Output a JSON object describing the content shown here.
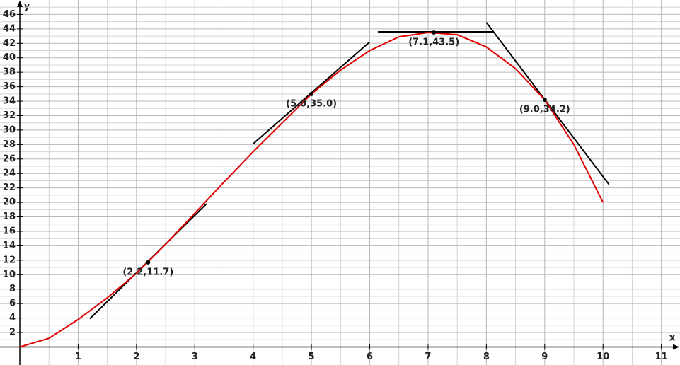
{
  "chart_data": {
    "type": "line",
    "x_label": "x",
    "y_label": "y",
    "xlim": [
      -0.34,
      11.32
    ],
    "ylim": [
      -2.5,
      48
    ],
    "xticks": [
      1,
      2,
      3,
      4,
      5,
      6,
      7,
      8,
      9,
      10,
      11
    ],
    "yticks": [
      2,
      4,
      6,
      8,
      10,
      12,
      14,
      16,
      18,
      20,
      22,
      24,
      26,
      28,
      30,
      32,
      34,
      36,
      38,
      40,
      42,
      44,
      46
    ],
    "x_minor_ticks": [
      0.5,
      1.5,
      2.5,
      3.5,
      4.5,
      5.5,
      6.5,
      7.5,
      8.5,
      9.5,
      10.5
    ],
    "y_minor_ticks": [
      1,
      3,
      5,
      7,
      9,
      11,
      13,
      15,
      17,
      19,
      21,
      23,
      25,
      27,
      29,
      31,
      33,
      35,
      37,
      39,
      41,
      43,
      45,
      47
    ],
    "grid": true,
    "series": [
      {
        "color": "#e00000",
        "x": [
          0,
          0.5,
          1,
          1.5,
          2,
          2.5,
          3,
          3.5,
          4,
          4.5,
          5,
          5.5,
          6,
          6.5,
          7,
          7.5,
          8,
          8.5,
          9,
          9.5,
          10
        ],
        "values": [
          0,
          1.2,
          3.8,
          6.8,
          10.2,
          14.2,
          18.5,
          22.8,
          27,
          31,
          35,
          38.3,
          41,
          42.9,
          43.5,
          43.2,
          41.5,
          38.5,
          34.2,
          28,
          20
        ]
      }
    ],
    "tangents": [
      {
        "color": "#000000",
        "x": [
          1.2,
          3.2
        ],
        "values": [
          3.9,
          19.8
        ]
      },
      {
        "color": "#000000",
        "x": [
          4.0,
          6.0
        ],
        "values": [
          28.1,
          42.2
        ]
      },
      {
        "color": "#000000",
        "x": [
          6.14,
          8.12
        ],
        "values": [
          43.6,
          43.6
        ]
      },
      {
        "color": "#000000",
        "x": [
          8.0,
          10.1
        ],
        "values": [
          44.9,
          22.5
        ]
      }
    ],
    "points": {
      "color": "#000000",
      "x": [
        2.2,
        5.0,
        7.1,
        9.0
      ],
      "values": [
        11.7,
        35.0,
        43.5,
        34.2
      ],
      "value_labels": [
        "(2.2,11.7)",
        "(5.0,35.0)",
        "(7.1,43.5)",
        "(9.0,34.2)"
      ]
    }
  }
}
